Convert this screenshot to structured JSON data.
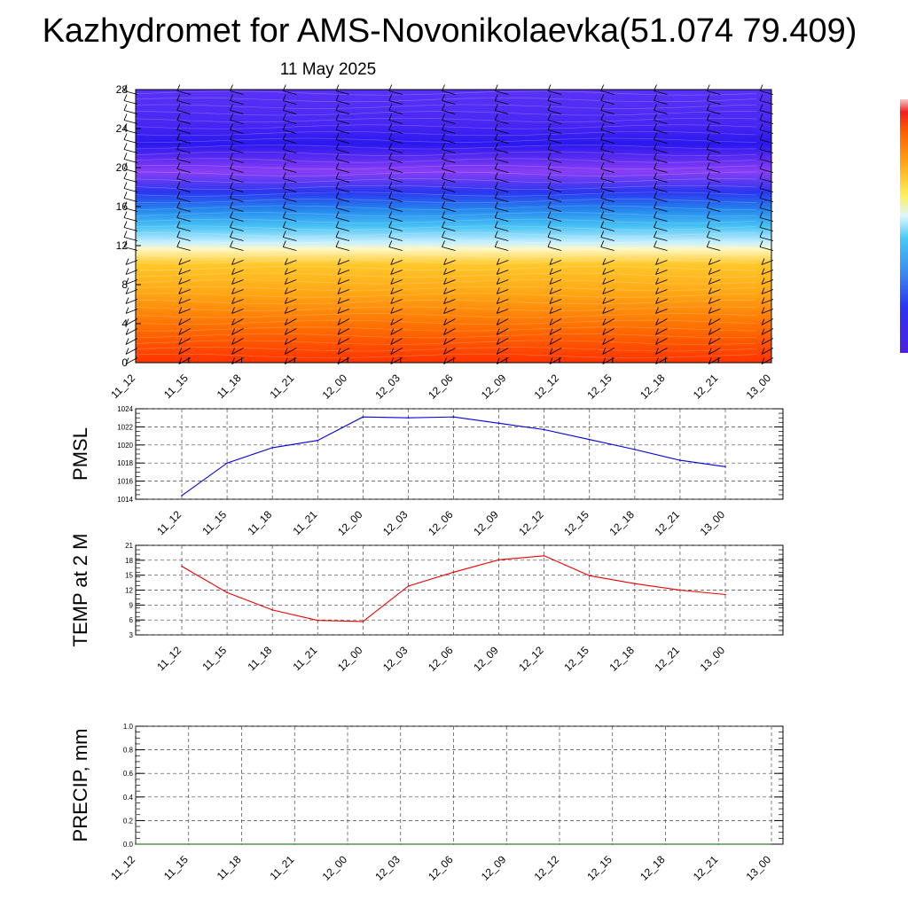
{
  "title": "Kazhydromet for AMS-Novonikolaevka(51.074 79.409)",
  "subtitle": "11 May 2025",
  "time_labels": [
    "11_12",
    "11_15",
    "11_18",
    "11_21",
    "12_00",
    "12_03",
    "12_06",
    "12_09",
    "12_12",
    "12_15",
    "12_18",
    "12_21",
    "13_00"
  ],
  "colors": {
    "pressure_line": "#0000dd",
    "temp_line": "#ee0000",
    "precip_line": "#006400",
    "grid": "#444444"
  },
  "chart_data": [
    {
      "type": "heatmap",
      "name": "vertical-profile",
      "x": [
        "11_12",
        "11_15",
        "11_18",
        "11_21",
        "12_00",
        "12_03",
        "12_06",
        "12_09",
        "12_12",
        "12_15",
        "12_18",
        "12_21",
        "13_00"
      ],
      "ylim": [
        0,
        28
      ],
      "yticks": [
        0,
        4,
        8,
        12,
        16,
        20,
        24,
        28
      ],
      "colorbar": "purple-blue-cyan-white-yellow-orange-red",
      "overlay": "wind barbs"
    },
    {
      "type": "line",
      "ylabel": "PMSL",
      "x": [
        "11_12",
        "11_15",
        "11_18",
        "11_21",
        "12_00",
        "12_03",
        "12_06",
        "12_09",
        "12_12",
        "12_15",
        "12_18",
        "12_21",
        "13_00"
      ],
      "values": [
        1014.4,
        1018.0,
        1019.7,
        1020.5,
        1023.1,
        1023.0,
        1023.1,
        1022.4,
        1021.7,
        1020.6,
        1019.5,
        1018.3,
        1017.6
      ],
      "ylim": [
        1014,
        1024
      ],
      "yticks": [
        1014,
        1016,
        1018,
        1020,
        1022,
        1024
      ],
      "grid": true
    },
    {
      "type": "line",
      "ylabel": "TEMP at 2 M",
      "x": [
        "11_12",
        "11_15",
        "11_18",
        "11_21",
        "12_00",
        "12_03",
        "12_06",
        "12_09",
        "12_12",
        "12_15",
        "12_18",
        "12_21",
        "13_00"
      ],
      "values": [
        16.8,
        11.5,
        8.0,
        5.9,
        5.7,
        12.8,
        15.6,
        18.1,
        18.9,
        14.9,
        13.3,
        12.0,
        11.1
      ],
      "ylim": [
        3,
        21
      ],
      "yticks": [
        3,
        6,
        9,
        12,
        15,
        18,
        21
      ],
      "grid": true
    },
    {
      "type": "line",
      "ylabel": "PRECIP, mm",
      "x": [
        "11_12",
        "11_15",
        "11_18",
        "11_21",
        "12_00",
        "12_03",
        "12_06",
        "12_09",
        "12_12",
        "12_15",
        "12_18",
        "12_21",
        "13_00"
      ],
      "values": [
        0,
        0,
        0,
        0,
        0,
        0,
        0,
        0,
        0,
        0,
        0,
        0,
        0
      ],
      "ylim": [
        0.0,
        1.0
      ],
      "yticks": [
        "0.0",
        "0.2",
        "0.4",
        "0.6",
        "0.8",
        "1.0"
      ],
      "grid": true
    }
  ]
}
